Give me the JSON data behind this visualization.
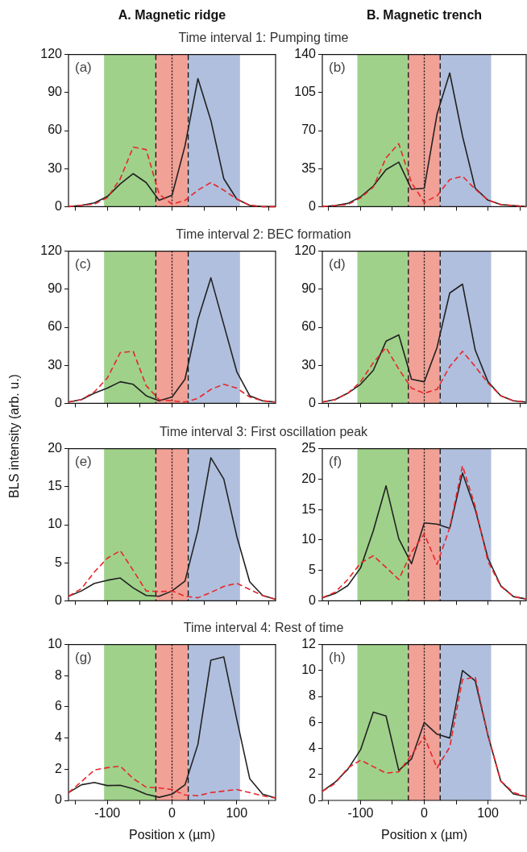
{
  "chart_data": [
    {
      "type": "line",
      "title": "(a)",
      "subtitle": "Time interval 1: Pumping time",
      "annotations": [
        "A. Magnetic ridge"
      ],
      "x": [
        -160,
        -140,
        -120,
        -100,
        -80,
        -60,
        -40,
        -20,
        0,
        20,
        40,
        60,
        80,
        100,
        120,
        140,
        160
      ],
      "xlim": [
        -160,
        160
      ],
      "xticks": [
        {
          "value": -150,
          "label": null
        },
        -100,
        {
          "value": -50,
          "label": null
        },
        0,
        {
          "value": 50,
          "label": null
        },
        100,
        {
          "value": 150,
          "label": null
        }
      ],
      "ylim": [
        0,
        120
      ],
      "yticks": [
        0,
        30,
        60,
        90,
        120
      ],
      "tick_labels": "y",
      "bands": [
        {
          "axis": "x",
          "from": -105,
          "to": -25,
          "color": "#9fd18a"
        },
        {
          "axis": "x",
          "from": -25,
          "to": 25,
          "color": "#f1a196"
        },
        {
          "axis": "x",
          "from": 25,
          "to": 105,
          "color": "#b0bfdd"
        }
      ],
      "ref_lines": [
        {
          "axis": "x",
          "value": -25,
          "line_style": "dashed"
        },
        {
          "axis": "x",
          "value": 0,
          "line_style": "dotted"
        },
        {
          "axis": "x",
          "value": 25,
          "line_style": "dashed"
        }
      ],
      "series": [
        {
          "color": "#222222",
          "line_style": "solid",
          "values": [
            0,
            1,
            3,
            8,
            18,
            26,
            19,
            5,
            9,
            48,
            101,
            68,
            22,
            6,
            1,
            0,
            0
          ]
        },
        {
          "color": "#e8262a",
          "line_style": "dashed",
          "values": [
            0,
            1,
            2,
            7,
            22,
            47,
            45,
            10,
            2,
            5,
            13,
            19,
            13,
            6,
            1,
            0,
            0
          ]
        }
      ]
    },
    {
      "type": "line",
      "title": "(b)",
      "annotations": [
        "B. Magnetic trench"
      ],
      "x": [
        -160,
        -140,
        -120,
        -100,
        -80,
        -60,
        -40,
        -20,
        0,
        20,
        40,
        60,
        80,
        100,
        120,
        140,
        160
      ],
      "xlim": [
        -160,
        160
      ],
      "xticks": [
        {
          "value": -150,
          "label": null
        },
        -100,
        {
          "value": -50,
          "label": null
        },
        0,
        {
          "value": 50,
          "label": null
        },
        100,
        {
          "value": 150,
          "label": null
        }
      ],
      "ylim": [
        0,
        140
      ],
      "yticks": [
        0,
        35,
        70,
        105,
        140
      ],
      "tick_labels": "y",
      "bands": [
        {
          "axis": "x",
          "from": -105,
          "to": -25,
          "color": "#9fd18a"
        },
        {
          "axis": "x",
          "from": -25,
          "to": 25,
          "color": "#f1a196"
        },
        {
          "axis": "x",
          "from": 25,
          "to": 105,
          "color": "#b0bfdd"
        }
      ],
      "ref_lines": [
        {
          "axis": "x",
          "value": -25,
          "line_style": "dashed"
        },
        {
          "axis": "x",
          "value": 0,
          "line_style": "dotted"
        },
        {
          "axis": "x",
          "value": 25,
          "line_style": "dashed"
        }
      ],
      "series": [
        {
          "color": "#222222",
          "line_style": "solid",
          "values": [
            0,
            1,
            3,
            9,
            19,
            34,
            41,
            16,
            17,
            85,
            123,
            65,
            17,
            6,
            2,
            1,
            0
          ]
        },
        {
          "color": "#e8262a",
          "line_style": "dashed",
          "values": [
            0,
            1,
            2,
            8,
            18,
            45,
            58,
            22,
            4,
            10,
            25,
            28,
            16,
            6,
            2,
            1,
            0
          ]
        }
      ]
    },
    {
      "type": "line",
      "title": "(c)",
      "subtitle": "Time interval 2: BEC formation",
      "x": [
        -160,
        -140,
        -120,
        -100,
        -80,
        -60,
        -40,
        -20,
        0,
        20,
        40,
        60,
        80,
        100,
        120,
        140,
        160
      ],
      "xlim": [
        -160,
        160
      ],
      "xticks": [
        {
          "value": -150,
          "label": null
        },
        -100,
        {
          "value": -50,
          "label": null
        },
        0,
        {
          "value": 50,
          "label": null
        },
        100,
        {
          "value": 150,
          "label": null
        }
      ],
      "ylim": [
        0,
        120
      ],
      "yticks": [
        0,
        30,
        60,
        90,
        120
      ],
      "tick_labels": "y",
      "bands": [
        {
          "axis": "x",
          "from": -105,
          "to": -25,
          "color": "#9fd18a"
        },
        {
          "axis": "x",
          "from": -25,
          "to": 25,
          "color": "#f1a196"
        },
        {
          "axis": "x",
          "from": 25,
          "to": 105,
          "color": "#b0bfdd"
        }
      ],
      "ref_lines": [
        {
          "axis": "x",
          "value": -25,
          "line_style": "dashed"
        },
        {
          "axis": "x",
          "value": 0,
          "line_style": "dotted"
        },
        {
          "axis": "x",
          "value": 25,
          "line_style": "dashed"
        }
      ],
      "series": [
        {
          "color": "#222222",
          "line_style": "solid",
          "values": [
            1,
            3,
            8,
            12,
            17,
            15,
            6,
            2,
            5,
            19,
            66,
            99,
            62,
            25,
            6,
            2,
            1
          ]
        },
        {
          "color": "#e8262a",
          "line_style": "dashed",
          "values": [
            1,
            3,
            9,
            20,
            40,
            41,
            14,
            3,
            2,
            1,
            4,
            11,
            15,
            12,
            5,
            2,
            1
          ]
        }
      ]
    },
    {
      "type": "line",
      "title": "(d)",
      "x": [
        -160,
        -140,
        -120,
        -100,
        -80,
        -60,
        -40,
        -20,
        0,
        20,
        40,
        60,
        80,
        100,
        120,
        140,
        160
      ],
      "xlim": [
        -160,
        160
      ],
      "xticks": [
        {
          "value": -150,
          "label": null
        },
        -100,
        {
          "value": -50,
          "label": null
        },
        0,
        {
          "value": 50,
          "label": null
        },
        100,
        {
          "value": 150,
          "label": null
        }
      ],
      "ylim": [
        0,
        120
      ],
      "yticks": [
        0,
        30,
        60,
        90,
        120
      ],
      "tick_labels": "y",
      "bands": [
        {
          "axis": "x",
          "from": -105,
          "to": -25,
          "color": "#9fd18a"
        },
        {
          "axis": "x",
          "from": -25,
          "to": 25,
          "color": "#f1a196"
        },
        {
          "axis": "x",
          "from": 25,
          "to": 105,
          "color": "#b0bfdd"
        }
      ],
      "ref_lines": [
        {
          "axis": "x",
          "value": -25,
          "line_style": "dashed"
        },
        {
          "axis": "x",
          "value": 0,
          "line_style": "dotted"
        },
        {
          "axis": "x",
          "value": 25,
          "line_style": "dashed"
        }
      ],
      "series": [
        {
          "color": "#222222",
          "line_style": "solid",
          "values": [
            1,
            3,
            8,
            15,
            26,
            49,
            54,
            19,
            17,
            44,
            87,
            94,
            42,
            17,
            6,
            2,
            1
          ]
        },
        {
          "color": "#e8262a",
          "line_style": "dashed",
          "values": [
            1,
            3,
            8,
            17,
            32,
            44,
            27,
            12,
            8,
            11,
            29,
            41,
            29,
            16,
            6,
            2,
            1
          ]
        }
      ]
    },
    {
      "type": "line",
      "title": "(e)",
      "subtitle": "Time interval 3: First oscillation peak",
      "ylabel": "BLS intensity (arb. u.)",
      "x": [
        -160,
        -140,
        -120,
        -100,
        -80,
        -60,
        -40,
        -20,
        0,
        20,
        40,
        60,
        80,
        100,
        120,
        140,
        160
      ],
      "xlim": [
        -160,
        160
      ],
      "xticks": [
        {
          "value": -150,
          "label": null
        },
        -100,
        {
          "value": -50,
          "label": null
        },
        0,
        {
          "value": 50,
          "label": null
        },
        100,
        {
          "value": 150,
          "label": null
        }
      ],
      "ylim": [
        0,
        20
      ],
      "yticks": [
        0,
        5,
        10,
        15,
        20
      ],
      "tick_labels": "y",
      "bands": [
        {
          "axis": "x",
          "from": -105,
          "to": -25,
          "color": "#9fd18a"
        },
        {
          "axis": "x",
          "from": -25,
          "to": 25,
          "color": "#f1a196"
        },
        {
          "axis": "x",
          "from": 25,
          "to": 105,
          "color": "#b0bfdd"
        }
      ],
      "ref_lines": [
        {
          "axis": "x",
          "value": -25,
          "line_style": "dashed"
        },
        {
          "axis": "x",
          "value": 0,
          "line_style": "dotted"
        },
        {
          "axis": "x",
          "value": 25,
          "line_style": "dashed"
        }
      ],
      "series": [
        {
          "color": "#222222",
          "line_style": "solid",
          "values": [
            0.6,
            1.3,
            2.3,
            2.7,
            3.0,
            1.7,
            0.7,
            0.6,
            1.3,
            2.6,
            9.3,
            18.8,
            16,
            8.5,
            2.5,
            0.7,
            0.2
          ]
        },
        {
          "color": "#e8262a",
          "line_style": "dashed",
          "values": [
            0.6,
            1.6,
            3.8,
            5.6,
            6.6,
            4,
            1.3,
            1.2,
            1.3,
            0.6,
            0.4,
            1.1,
            1.9,
            2.3,
            1.5,
            0.7,
            0.2
          ]
        }
      ]
    },
    {
      "type": "line",
      "title": "(f)",
      "x": [
        -160,
        -140,
        -120,
        -100,
        -80,
        -60,
        -40,
        -20,
        0,
        20,
        40,
        60,
        80,
        100,
        120,
        140,
        160
      ],
      "xlim": [
        -160,
        160
      ],
      "xticks": [
        {
          "value": -150,
          "label": null
        },
        -100,
        {
          "value": -50,
          "label": null
        },
        0,
        {
          "value": 50,
          "label": null
        },
        100,
        {
          "value": 150,
          "label": null
        }
      ],
      "ylim": [
        0,
        25
      ],
      "yticks": [
        0,
        5,
        10,
        15,
        20,
        25
      ],
      "tick_labels": "y",
      "bands": [
        {
          "axis": "x",
          "from": -105,
          "to": -25,
          "color": "#9fd18a"
        },
        {
          "axis": "x",
          "from": -25,
          "to": 25,
          "color": "#f1a196"
        },
        {
          "axis": "x",
          "from": 25,
          "to": 105,
          "color": "#b0bfdd"
        }
      ],
      "ref_lines": [
        {
          "axis": "x",
          "value": -25,
          "line_style": "dashed"
        },
        {
          "axis": "x",
          "value": 0,
          "line_style": "dotted"
        },
        {
          "axis": "x",
          "value": 25,
          "line_style": "dashed"
        }
      ],
      "series": [
        {
          "color": "#222222",
          "line_style": "solid",
          "values": [
            0.5,
            1.2,
            2.5,
            5.4,
            11.5,
            18.9,
            10.2,
            6.1,
            12.8,
            12.6,
            11.9,
            21,
            15,
            7,
            2.5,
            0.7,
            0.3
          ]
        },
        {
          "color": "#e8262a",
          "line_style": "dashed",
          "values": [
            0.5,
            1.4,
            3.5,
            6.2,
            7.4,
            5.5,
            3.5,
            8,
            11,
            6,
            12,
            22.2,
            15.5,
            6.5,
            2.4,
            0.7,
            0.3
          ]
        }
      ]
    },
    {
      "type": "line",
      "title": "(g)",
      "subtitle": "Time interval 4: Rest of time",
      "xlabel": "Position x (µm)",
      "x": [
        -160,
        -140,
        -120,
        -100,
        -80,
        -60,
        -40,
        -20,
        0,
        20,
        40,
        60,
        80,
        100,
        120,
        140,
        160
      ],
      "xlim": [
        -160,
        160
      ],
      "xticks": [
        {
          "value": -150,
          "label": null
        },
        -100,
        {
          "value": -50,
          "label": null
        },
        0,
        {
          "value": 50,
          "label": null
        },
        100,
        {
          "value": 150,
          "label": null
        }
      ],
      "ylim": [
        0,
        10
      ],
      "yticks": [
        0,
        2,
        4,
        6,
        8,
        10
      ],
      "bands": [
        {
          "axis": "x",
          "from": -105,
          "to": -25,
          "color": "#9fd18a"
        },
        {
          "axis": "x",
          "from": -25,
          "to": 25,
          "color": "#f1a196"
        },
        {
          "axis": "x",
          "from": 25,
          "to": 105,
          "color": "#b0bfdd"
        }
      ],
      "ref_lines": [
        {
          "axis": "x",
          "value": -25,
          "line_style": "dashed"
        },
        {
          "axis": "x",
          "value": 0,
          "line_style": "dotted"
        },
        {
          "axis": "x",
          "value": 25,
          "line_style": "dashed"
        }
      ],
      "series": [
        {
          "color": "#222222",
          "line_style": "solid",
          "values": [
            0.5,
            1.0,
            1.15,
            0.95,
            0.97,
            0.75,
            0.4,
            0.2,
            0.4,
            1.0,
            3.6,
            9,
            9.2,
            5.2,
            1.4,
            0.4,
            0.15
          ]
        },
        {
          "color": "#e8262a",
          "line_style": "dashed",
          "values": [
            0.5,
            1.2,
            1.95,
            2.1,
            2.2,
            1.4,
            0.85,
            0.8,
            0.7,
            0.35,
            0.3,
            0.5,
            0.6,
            0.7,
            0.5,
            0.3,
            0.15
          ]
        }
      ]
    },
    {
      "type": "line",
      "title": "(h)",
      "xlabel": "Position x (µm)",
      "x": [
        -160,
        -140,
        -120,
        -100,
        -80,
        -60,
        -40,
        -20,
        0,
        20,
        40,
        60,
        80,
        100,
        120,
        140,
        160
      ],
      "xlim": [
        -160,
        160
      ],
      "xticks": [
        {
          "value": -150,
          "label": null
        },
        -100,
        {
          "value": -50,
          "label": null
        },
        0,
        {
          "value": 50,
          "label": null
        },
        100,
        {
          "value": 150,
          "label": null
        }
      ],
      "ylim": [
        0,
        12
      ],
      "yticks": [
        0,
        2,
        4,
        6,
        8,
        10,
        12
      ],
      "bands": [
        {
          "axis": "x",
          "from": -105,
          "to": -25,
          "color": "#9fd18a"
        },
        {
          "axis": "x",
          "from": -25,
          "to": 25,
          "color": "#f1a196"
        },
        {
          "axis": "x",
          "from": 25,
          "to": 105,
          "color": "#b0bfdd"
        }
      ],
      "ref_lines": [
        {
          "axis": "x",
          "value": -25,
          "line_style": "dashed"
        },
        {
          "axis": "x",
          "value": 0,
          "line_style": "dotted"
        },
        {
          "axis": "x",
          "value": 25,
          "line_style": "dashed"
        }
      ],
      "series": [
        {
          "color": "#222222",
          "line_style": "solid",
          "values": [
            0.7,
            1.4,
            2.4,
            3.9,
            6.8,
            6.5,
            2.3,
            3.2,
            6,
            5.1,
            4.8,
            10,
            9.2,
            5,
            1.5,
            0.5,
            0.3
          ]
        },
        {
          "color": "#e8262a",
          "line_style": "dashed",
          "values": [
            0.7,
            1.3,
            2.5,
            3.1,
            2.6,
            2.1,
            2.2,
            3.5,
            4.9,
            2.5,
            4.1,
            9.3,
            9.5,
            5,
            1.5,
            0.6,
            0.3
          ]
        }
      ]
    }
  ]
}
